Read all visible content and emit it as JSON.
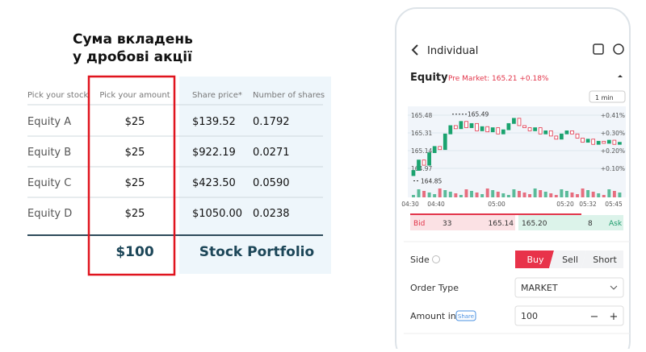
{
  "title": {
    "line1": "Сума вкладень",
    "line2": "у дробові акції"
  },
  "table": {
    "header": [
      "Pick your stock",
      "Pick your amount",
      "Share price*",
      "Number of shares"
    ],
    "rows": [
      [
        "Equity A",
        "$25",
        "$139.52",
        "0.1792"
      ],
      [
        "Equity B",
        "$25",
        "$922.19",
        "0.0271"
      ],
      [
        "Equity C",
        "$25",
        "$423.50",
        "0.0590"
      ],
      [
        "Equity D",
        "$25",
        "$1050.00",
        "0.0238"
      ]
    ],
    "total": "$100",
    "portfolio": "Stock Portfolio"
  },
  "app": {
    "nav": "Individual",
    "symbol": "Equity",
    "premarket": "Pre Market: 165.21 +0.18%",
    "interval": "1 min",
    "chart": {
      "yticks": [
        165.48,
        165.31,
        165.14,
        164.97
      ],
      "pct": [
        {
          "value": 0.41,
          "label": "+0.41%"
        },
        {
          "value": 0.3,
          "label": "+0.30%"
        },
        {
          "value": 0.2,
          "label": "+0.20%"
        },
        {
          "value": 0.1,
          "label": "+0.10%"
        }
      ],
      "times": [
        "04:30",
        "04:40",
        "05:00",
        "05:20",
        "05:32",
        "05:45"
      ],
      "high_label": 165.49,
      "low_label": 164.85,
      "candles": [
        [
          164.9,
          164.95
        ],
        [
          164.95,
          165.05
        ],
        [
          165.05,
          165.0
        ],
        [
          165.0,
          165.12
        ],
        [
          165.12,
          165.18
        ],
        [
          165.18,
          165.15
        ],
        [
          165.15,
          165.3
        ],
        [
          165.3,
          165.38
        ],
        [
          165.38,
          165.35
        ],
        [
          165.35,
          165.42
        ],
        [
          165.42,
          165.36
        ],
        [
          165.36,
          165.4
        ],
        [
          165.4,
          165.33
        ],
        [
          165.33,
          165.37
        ],
        [
          165.37,
          165.32
        ],
        [
          165.32,
          165.36
        ],
        [
          165.36,
          165.3
        ],
        [
          165.3,
          165.34
        ],
        [
          165.34,
          165.4
        ],
        [
          165.4,
          165.45
        ],
        [
          165.45,
          165.38
        ],
        [
          165.38,
          165.36
        ],
        [
          165.36,
          165.33
        ],
        [
          165.33,
          165.36
        ],
        [
          165.36,
          165.3
        ],
        [
          165.3,
          165.33
        ],
        [
          165.33,
          165.28
        ],
        [
          165.28,
          165.25
        ],
        [
          165.25,
          165.3
        ],
        [
          165.3,
          165.33
        ],
        [
          165.33,
          165.3
        ],
        [
          165.3,
          165.26
        ],
        [
          165.26,
          165.22
        ],
        [
          165.22,
          165.25
        ],
        [
          165.25,
          165.2
        ],
        [
          165.2,
          165.23
        ],
        [
          165.23,
          165.21
        ],
        [
          165.21,
          165.24
        ],
        [
          165.24,
          165.2
        ],
        [
          165.2,
          165.22
        ]
      ]
    },
    "bid": {
      "label": "Bid",
      "size": "33",
      "price": "165.14"
    },
    "ask": {
      "price": "165.20",
      "size": "8",
      "label": "Ask"
    },
    "form": {
      "side_label": "Side",
      "sides": [
        "Buy",
        "Sell",
        "Short"
      ],
      "order_label": "Order Type",
      "order_value": "MARKET",
      "amount_label": "Amount in",
      "amount_unit": "Share",
      "amount_value": "100"
    }
  }
}
